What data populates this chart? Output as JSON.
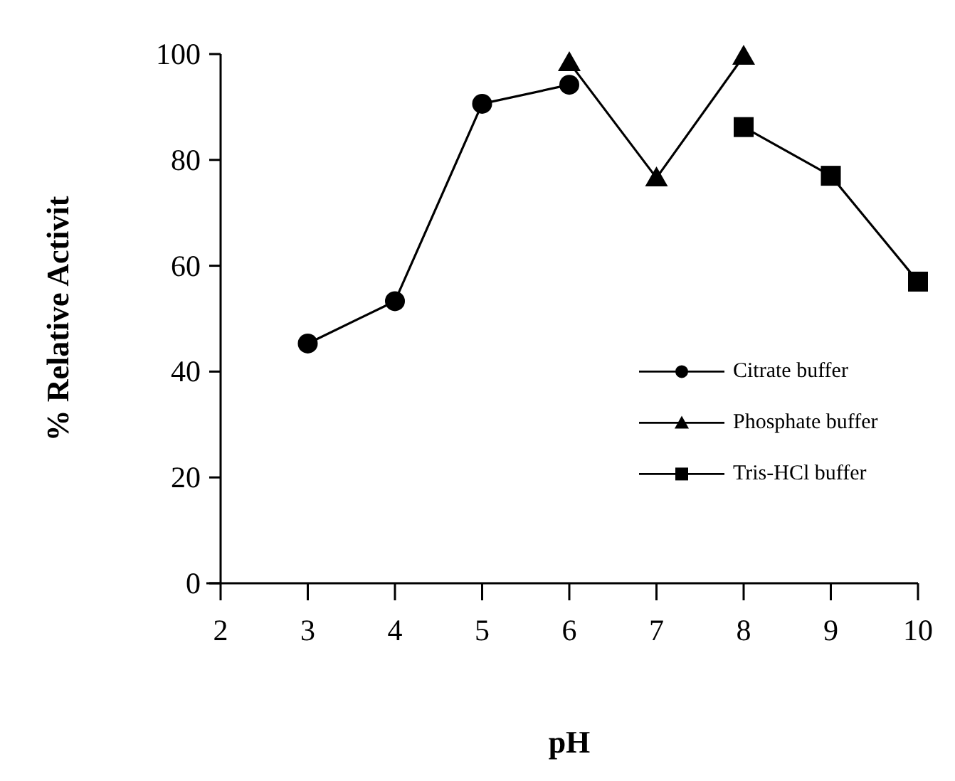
{
  "chart_data": {
    "type": "line",
    "xlabel": "pH",
    "ylabel": "% Relative Activit",
    "xlim": [
      2,
      10
    ],
    "xticks": [
      2,
      3,
      4,
      5,
      6,
      7,
      8,
      9,
      10
    ],
    "ylim": [
      0,
      100
    ],
    "yticks": [
      0,
      20,
      40,
      60,
      80,
      100
    ],
    "grid": false,
    "legend": "right",
    "line_style": "solid",
    "series": [
      {
        "name": "Citrate buffer",
        "color": "#000000",
        "marker": "circle",
        "x": [
          3,
          4,
          5,
          6
        ],
        "values": [
          45.3,
          53.3,
          90.6,
          94.2
        ]
      },
      {
        "name": "Phosphate buffer",
        "color": "#000000",
        "marker": "triangle",
        "x": [
          6,
          7,
          8
        ],
        "values": [
          98.4,
          76.6,
          99.6
        ]
      },
      {
        "name": "Tris-HCl buffer",
        "color": "#000000",
        "marker": "square",
        "x": [
          8,
          9,
          10
        ],
        "values": [
          86.2,
          77.0,
          57.0
        ]
      }
    ]
  }
}
